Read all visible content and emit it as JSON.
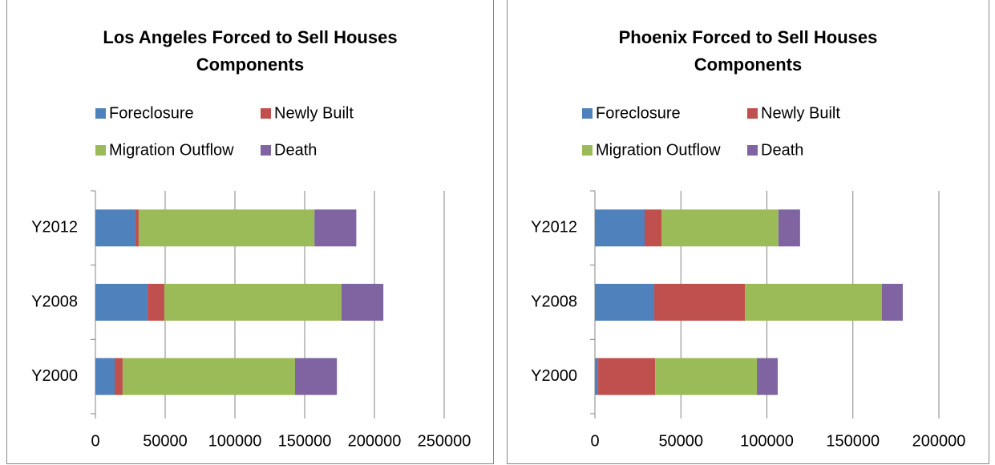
{
  "chart_data": [
    {
      "type": "bar",
      "orientation": "horizontal",
      "stacked": true,
      "title": "Los Angeles Forced to Sell Houses Components",
      "categories": [
        "Y2000",
        "Y2008",
        "Y2012"
      ],
      "series": [
        {
          "name": "Foreclosure",
          "color": "#4f81bd",
          "values": [
            13800,
            37400,
            28700
          ]
        },
        {
          "name": "Newly Built",
          "color": "#c0504d",
          "values": [
            5700,
            12000,
            2300
          ]
        },
        {
          "name": "Migration Outflow",
          "color": "#9bbb59",
          "values": [
            123600,
            127000,
            126000
          ]
        },
        {
          "name": "Death",
          "color": "#8064a2",
          "values": [
            30000,
            30000,
            30000
          ]
        }
      ],
      "xlim": [
        0,
        250000
      ],
      "xticks": [
        0,
        50000,
        100000,
        150000,
        200000,
        250000
      ],
      "grid": true
    },
    {
      "type": "bar",
      "orientation": "horizontal",
      "stacked": true,
      "title": "Phoenix Forced to Sell Houses Components",
      "categories": [
        "Y2000",
        "Y2008",
        "Y2012"
      ],
      "series": [
        {
          "name": "Foreclosure",
          "color": "#4f81bd",
          "values": [
            1900,
            34500,
            28900
          ]
        },
        {
          "name": "Newly Built",
          "color": "#c0504d",
          "values": [
            33100,
            52700,
            9800
          ]
        },
        {
          "name": "Migration Outflow",
          "color": "#9bbb59",
          "values": [
            59200,
            79700,
            68000
          ]
        },
        {
          "name": "Death",
          "color": "#8064a2",
          "values": [
            12100,
            12100,
            12600
          ]
        }
      ],
      "xlim": [
        0,
        200000
      ],
      "xticks": [
        0,
        50000,
        100000,
        150000,
        200000
      ],
      "grid": true
    }
  ]
}
